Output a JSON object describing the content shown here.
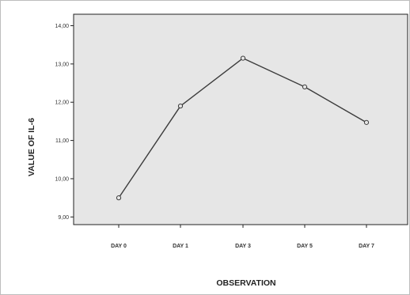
{
  "chart_data": {
    "type": "line",
    "title": "",
    "xlabel": "OBSERVATION",
    "ylabel": "VALUE OF IL-6",
    "categories": [
      "DAY 0",
      "DAY 1",
      "DAY 3",
      "DAY 5",
      "DAY 7"
    ],
    "series": [
      {
        "values": [
          9.5,
          11.9,
          13.15,
          12.4,
          11.47
        ]
      }
    ],
    "ylim": [
      8.8,
      14.3
    ],
    "yticks": [
      9,
      10,
      11,
      12,
      13,
      14
    ],
    "ytick_labels": [
      "9,00",
      "10,00",
      "11,00",
      "12,00",
      "13,00",
      "14,00"
    ],
    "grid": false,
    "legend": "none",
    "colors": {
      "plot_background": "#e6e6e6",
      "line": "#3c3c3c",
      "marker_fill": "#e6e6e6"
    }
  }
}
